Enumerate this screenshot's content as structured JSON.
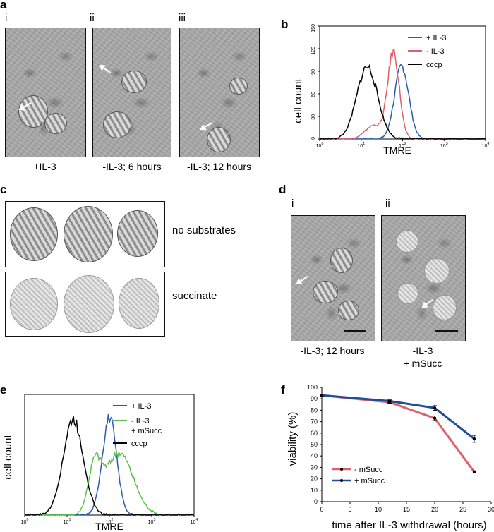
{
  "panels": {
    "a": {
      "label": "a",
      "sub": [
        {
          "roman": "i",
          "caption": "+IL-3"
        },
        {
          "roman": "ii",
          "caption": "-IL-3; 6 hours"
        },
        {
          "roman": "iii",
          "caption": "-IL-3; 12 hours"
        }
      ]
    },
    "b": {
      "label": "b"
    },
    "c": {
      "label": "c",
      "row1": "no substrates",
      "row2": "succinate"
    },
    "d": {
      "label": "d",
      "sub": [
        {
          "roman": "i",
          "caption": "-IL-3; 12 hours"
        },
        {
          "roman": "ii",
          "caption_line1": "-IL-3",
          "caption_line2": "+ mSucc"
        }
      ]
    },
    "e": {
      "label": "e"
    },
    "f": {
      "label": "f"
    }
  },
  "chart_data": [
    {
      "panel": "b",
      "type": "line",
      "xlabel": "TMRE",
      "ylabel": "cell count",
      "x_scale": "log",
      "x_ticks": [
        "10^0",
        "10^1",
        "10^2",
        "10^3",
        "10^4"
      ],
      "y_ticks": [
        "0",
        "30",
        "60",
        "90",
        "120",
        "150"
      ],
      "ylim": [
        0,
        150
      ],
      "legend_position": "top-right",
      "series": [
        {
          "name": "+ IL-3",
          "color": "#2a5db0",
          "peak_x": 95,
          "peak_y": 97
        },
        {
          "name": "- IL-3",
          "color": "#e0606a",
          "peak_x": 60,
          "peak_y": 115
        },
        {
          "name": "cccp",
          "color": "#000000",
          "peak_x": 14,
          "peak_y": 96
        }
      ]
    },
    {
      "panel": "e",
      "type": "line",
      "xlabel": "TMRE",
      "ylabel": "cell count",
      "x_scale": "log",
      "x_ticks": [
        "10^0",
        "10^1",
        "10^2",
        "10^3",
        "10^4"
      ],
      "legend_position": "top-right",
      "series": [
        {
          "name": "+ IL-3",
          "color": "#2a5db0",
          "peak_x": 100,
          "peak_y": 97
        },
        {
          "name": "- IL-3\n+ mSucc",
          "name_line1": "- IL-3",
          "name_line2": "+ mSucc",
          "color": "#5dbf4a",
          "peak_x": 170,
          "peak_y": 62
        },
        {
          "name": "cccp",
          "color": "#000000",
          "peak_x": 14,
          "peak_y": 95
        }
      ]
    },
    {
      "panel": "f",
      "type": "line",
      "xlabel": "time after IL-3 withdrawal (hours)",
      "ylabel": "viability (%)",
      "xlim": [
        0,
        30
      ],
      "ylim": [
        0,
        100
      ],
      "x_ticks": [
        0,
        5,
        10,
        15,
        20,
        25,
        30
      ],
      "y_ticks": [
        0,
        10,
        20,
        30,
        40,
        50,
        60,
        70,
        80,
        90,
        100
      ],
      "legend_position": "bottom-left",
      "series": [
        {
          "name": "- mSucc",
          "color": "#e0606a",
          "x": [
            0,
            12,
            20,
            27
          ],
          "y": [
            93,
            87,
            73,
            26
          ],
          "err": [
            1,
            1,
            2,
            1
          ]
        },
        {
          "name": "+ mSucc",
          "color": "#1f4d99",
          "x": [
            0,
            12,
            20,
            27
          ],
          "y": [
            93,
            88,
            82,
            55
          ],
          "err": [
            1,
            1,
            2,
            3
          ]
        }
      ]
    }
  ]
}
